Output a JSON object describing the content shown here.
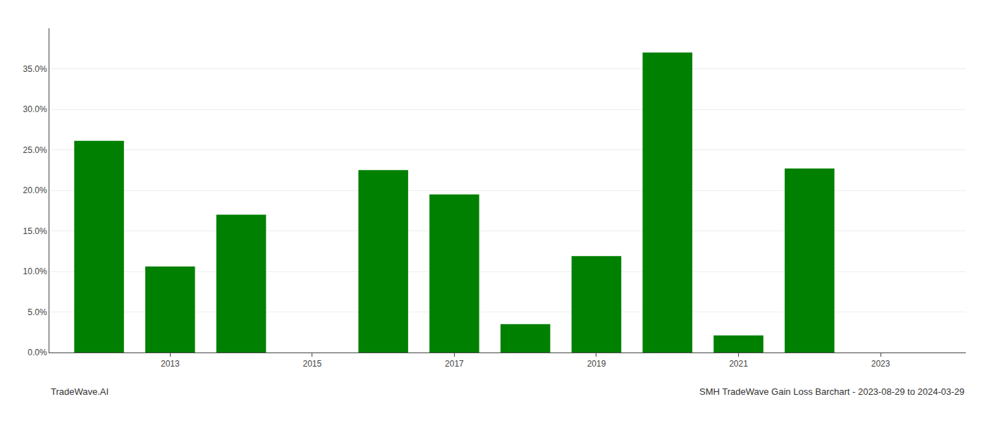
{
  "chart_data": {
    "type": "bar",
    "x": [
      2012.0,
      2013.0,
      2014.0,
      2016.0,
      2017.0,
      2018.0,
      2019.0,
      2020.0,
      2021.0,
      2022.0
    ],
    "values": [
      0.261,
      0.106,
      0.17,
      0.225,
      0.195,
      0.035,
      0.119,
      0.37,
      0.021,
      0.227
    ],
    "color": "#008000",
    "xlim": [
      2011.3,
      2024.2
    ],
    "xticks": [
      2013,
      2015,
      2017,
      2019,
      2021,
      2023
    ],
    "ylim": [
      0.0,
      0.4
    ],
    "yticks": [
      {
        "value": 0.0,
        "label": "0.0%"
      },
      {
        "value": 0.05,
        "label": "5.0%"
      },
      {
        "value": 0.1,
        "label": "10.0%"
      },
      {
        "value": 0.15,
        "label": "15.0%"
      },
      {
        "value": 0.2,
        "label": "20.0%"
      },
      {
        "value": 0.25,
        "label": "25.0%"
      },
      {
        "value": 0.3,
        "label": "30.0%"
      },
      {
        "value": 0.35,
        "label": "35.0%"
      }
    ],
    "grid": true,
    "annotations": [
      "TradeWave.AI",
      "SMH TradeWave Gain Loss Barchart - 2023-08-29 to 2024-03-29"
    ]
  }
}
